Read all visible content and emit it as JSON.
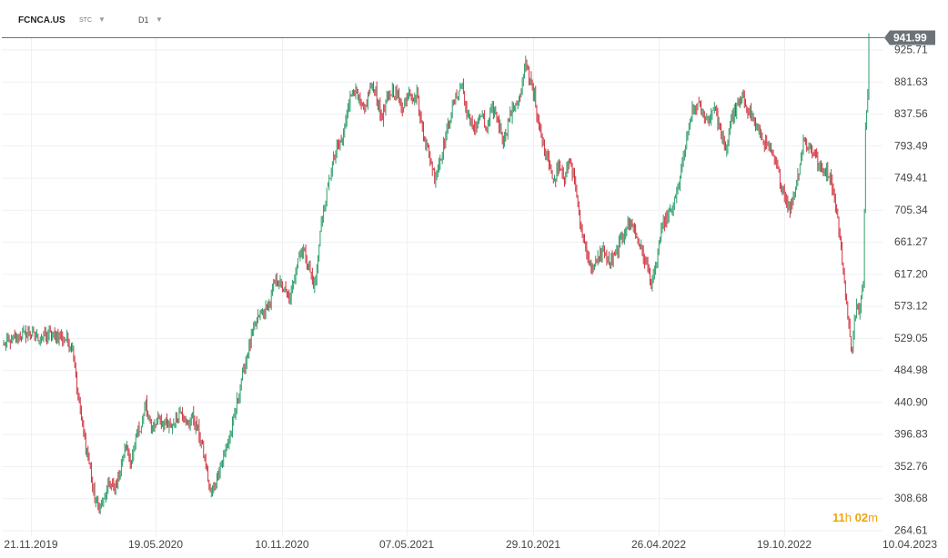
{
  "header": {
    "symbol": "FCNCA.US",
    "type": "STC",
    "timeframe": "D1"
  },
  "countdown": {
    "hours": "11",
    "hours_unit": "h",
    "minutes": "02",
    "minutes_unit": "m"
  },
  "colors": {
    "up": "#2e9e6a",
    "down": "#d0323f",
    "grid": "#eef0f2",
    "price_line": "#6b7378"
  },
  "chart_data": {
    "type": "candlestick",
    "current_price": "941.99",
    "y_ticks": [
      "925.71",
      "881.63",
      "837.56",
      "793.49",
      "749.41",
      "705.34",
      "661.27",
      "617.20",
      "573.12",
      "529.05",
      "484.98",
      "440.90",
      "396.83",
      "352.76",
      "308.68",
      "264.61"
    ],
    "x_ticks": [
      "21.11.2019",
      "19.05.2020",
      "10.11.2020",
      "07.05.2021",
      "29.10.2021",
      "26.04.2022",
      "19.10.2022",
      "10.04.2023"
    ],
    "ylim": [
      264.61,
      969.77
    ],
    "series": [
      [
        0,
        520
      ],
      [
        8,
        527
      ],
      [
        16,
        533
      ],
      [
        24,
        536
      ],
      [
        32,
        530
      ],
      [
        40,
        533
      ],
      [
        50,
        531
      ],
      [
        56,
        527
      ],
      [
        60,
        521
      ],
      [
        62,
        515
      ],
      [
        64,
        495
      ],
      [
        66,
        460
      ],
      [
        70,
        420
      ],
      [
        74,
        380
      ],
      [
        78,
        350
      ],
      [
        80,
        320
      ],
      [
        85,
        295
      ],
      [
        90,
        305
      ],
      [
        95,
        330
      ],
      [
        100,
        320
      ],
      [
        105,
        350
      ],
      [
        110,
        380
      ],
      [
        115,
        360
      ],
      [
        120,
        395
      ],
      [
        125,
        415
      ],
      [
        128,
        440
      ],
      [
        130,
        415
      ],
      [
        135,
        405
      ],
      [
        140,
        420
      ],
      [
        145,
        410
      ],
      [
        150,
        405
      ],
      [
        155,
        420
      ],
      [
        160,
        430
      ],
      [
        165,
        410
      ],
      [
        170,
        420
      ],
      [
        175,
        400
      ],
      [
        178,
        385
      ],
      [
        180,
        370
      ],
      [
        182,
        355
      ],
      [
        184,
        335
      ],
      [
        186,
        315
      ],
      [
        190,
        330
      ],
      [
        195,
        352
      ],
      [
        200,
        375
      ],
      [
        205,
        400
      ],
      [
        210,
        440
      ],
      [
        215,
        480
      ],
      [
        220,
        510
      ],
      [
        225,
        540
      ],
      [
        230,
        560
      ],
      [
        235,
        565
      ],
      [
        240,
        580
      ],
      [
        245,
        610
      ],
      [
        250,
        600
      ],
      [
        255,
        590
      ],
      [
        258,
        580
      ],
      [
        260,
        600
      ],
      [
        265,
        640
      ],
      [
        270,
        650
      ],
      [
        275,
        625
      ],
      [
        280,
        600
      ],
      [
        282,
        620
      ],
      [
        285,
        680
      ],
      [
        290,
        720
      ],
      [
        295,
        760
      ],
      [
        300,
        790
      ],
      [
        305,
        800
      ],
      [
        310,
        850
      ],
      [
        315,
        870
      ],
      [
        320,
        855
      ],
      [
        325,
        840
      ],
      [
        330,
        875
      ],
      [
        335,
        870
      ],
      [
        340,
        830
      ],
      [
        345,
        855
      ],
      [
        350,
        870
      ],
      [
        355,
        860
      ],
      [
        360,
        845
      ],
      [
        365,
        870
      ],
      [
        370,
        855
      ],
      [
        372,
        870
      ],
      [
        375,
        830
      ],
      [
        380,
        800
      ],
      [
        385,
        770
      ],
      [
        388,
        750
      ],
      [
        390,
        760
      ],
      [
        395,
        785
      ],
      [
        400,
        820
      ],
      [
        405,
        850
      ],
      [
        410,
        870
      ],
      [
        413,
        880
      ],
      [
        415,
        850
      ],
      [
        420,
        825
      ],
      [
        425,
        820
      ],
      [
        430,
        835
      ],
      [
        435,
        815
      ],
      [
        440,
        845
      ],
      [
        445,
        830
      ],
      [
        450,
        800
      ],
      [
        455,
        830
      ],
      [
        460,
        850
      ],
      [
        465,
        860
      ],
      [
        468,
        885
      ],
      [
        470,
        905
      ],
      [
        475,
        880
      ],
      [
        478,
        865
      ],
      [
        480,
        830
      ],
      [
        485,
        800
      ],
      [
        490,
        780
      ],
      [
        495,
        740
      ],
      [
        500,
        770
      ],
      [
        505,
        750
      ],
      [
        510,
        770
      ],
      [
        515,
        740
      ],
      [
        518,
        700
      ],
      [
        520,
        680
      ],
      [
        523,
        660
      ],
      [
        525,
        650
      ],
      [
        528,
        630
      ],
      [
        532,
        625
      ],
      [
        536,
        640
      ],
      [
        540,
        650
      ],
      [
        545,
        630
      ],
      [
        550,
        640
      ],
      [
        555,
        660
      ],
      [
        560,
        680
      ],
      [
        565,
        690
      ],
      [
        570,
        670
      ],
      [
        575,
        645
      ],
      [
        580,
        625
      ],
      [
        583,
        605
      ],
      [
        586,
        615
      ],
      [
        590,
        660
      ],
      [
        595,
        690
      ],
      [
        600,
        700
      ],
      [
        605,
        720
      ],
      [
        610,
        760
      ],
      [
        615,
        800
      ],
      [
        620,
        840
      ],
      [
        625,
        850
      ],
      [
        630,
        835
      ],
      [
        635,
        830
      ],
      [
        640,
        850
      ],
      [
        645,
        815
      ],
      [
        650,
        785
      ],
      [
        655,
        830
      ],
      [
        660,
        845
      ],
      [
        665,
        860
      ],
      [
        670,
        845
      ],
      [
        675,
        830
      ],
      [
        680,
        810
      ],
      [
        685,
        800
      ],
      [
        690,
        785
      ],
      [
        695,
        770
      ],
      [
        700,
        740
      ],
      [
        705,
        720
      ],
      [
        708,
        705
      ],
      [
        712,
        730
      ],
      [
        716,
        760
      ],
      [
        720,
        800
      ],
      [
        725,
        790
      ],
      [
        730,
        785
      ],
      [
        735,
        760
      ],
      [
        740,
        760
      ],
      [
        745,
        750
      ],
      [
        748,
        720
      ],
      [
        750,
        700
      ],
      [
        752,
        680
      ],
      [
        754,
        650
      ],
      [
        756,
        620
      ],
      [
        758,
        590
      ],
      [
        760,
        560
      ],
      [
        762,
        530
      ],
      [
        764,
        515
      ],
      [
        766,
        550
      ],
      [
        768,
        575
      ],
      [
        770,
        560
      ],
      [
        772,
        580
      ],
      [
        774,
        600
      ],
      [
        776,
        820
      ],
      [
        778,
        870
      ],
      [
        779,
        942
      ]
    ]
  }
}
